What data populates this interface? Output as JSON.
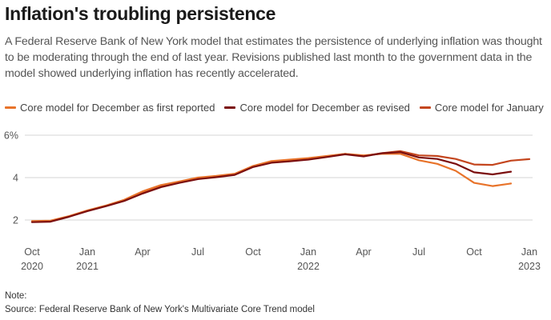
{
  "title": "Inflation's troubling persistence",
  "subtitle": "A Federal Reserve Bank of New York model that estimates the persistence of underlying inflation was thought to be moderating through the end of last year. Revisions published last month to the government data in the model showed underlying inflation has recently accelerated.",
  "footer": {
    "note": "Note:",
    "source": "Source: Federal Reserve Bank of New York's Multivariate Core Trend model"
  },
  "chart_data": {
    "type": "line",
    "title": "Inflation's troubling persistence",
    "xlabel": "",
    "ylabel": "",
    "ylim": [
      1.5,
      6
    ],
    "y_ticks": [
      {
        "value": 6,
        "label": "6%"
      },
      {
        "value": 4,
        "label": "4"
      },
      {
        "value": 2,
        "label": "2"
      }
    ],
    "x_ticks": [
      {
        "index": 0,
        "line1": "Oct",
        "line2": "2020"
      },
      {
        "index": 3,
        "line1": "Jan",
        "line2": "2021"
      },
      {
        "index": 6,
        "line1": "Apr",
        "line2": ""
      },
      {
        "index": 9,
        "line1": "Jul",
        "line2": ""
      },
      {
        "index": 12,
        "line1": "Oct",
        "line2": ""
      },
      {
        "index": 15,
        "line1": "Jan",
        "line2": "2022"
      },
      {
        "index": 18,
        "line1": "Apr",
        "line2": ""
      },
      {
        "index": 21,
        "line1": "Jul",
        "line2": ""
      },
      {
        "index": 24,
        "line1": "Oct",
        "line2": ""
      },
      {
        "index": 27,
        "line1": "Jan",
        "line2": "2023"
      }
    ],
    "x": [
      "2020-10",
      "2020-11",
      "2020-12",
      "2021-01",
      "2021-02",
      "2021-03",
      "2021-04",
      "2021-05",
      "2021-06",
      "2021-07",
      "2021-08",
      "2021-09",
      "2021-10",
      "2021-11",
      "2021-12",
      "2022-01",
      "2022-02",
      "2022-03",
      "2022-04",
      "2022-05",
      "2022-06",
      "2022-07",
      "2022-08",
      "2022-09",
      "2022-10",
      "2022-11",
      "2022-12",
      "2023-01"
    ],
    "grid": true,
    "legend_position": "top-left",
    "series": [
      {
        "name": "Core model for December as first reported",
        "color": "#e8732a",
        "values": [
          1.95,
          1.97,
          2.18,
          2.45,
          2.68,
          2.95,
          3.35,
          3.65,
          3.82,
          4.0,
          4.08,
          4.18,
          4.55,
          4.78,
          4.85,
          4.92,
          5.02,
          5.12,
          5.05,
          5.12,
          5.12,
          4.82,
          4.65,
          4.32,
          3.75,
          3.6,
          3.72,
          null
        ]
      },
      {
        "name": "Core model for December as revised",
        "color": "#7b0e0e",
        "values": [
          1.9,
          1.92,
          2.15,
          2.42,
          2.65,
          2.9,
          3.25,
          3.55,
          3.75,
          3.93,
          4.02,
          4.13,
          4.5,
          4.7,
          4.77,
          4.85,
          4.97,
          5.1,
          5.0,
          5.15,
          5.2,
          4.95,
          4.88,
          4.65,
          4.25,
          4.15,
          4.28,
          null
        ]
      },
      {
        "name": "Core model for January",
        "color": "#c4461e",
        "values": [
          1.92,
          1.94,
          2.16,
          2.44,
          2.66,
          2.92,
          3.3,
          3.6,
          3.78,
          3.97,
          4.05,
          4.15,
          4.52,
          4.75,
          4.82,
          4.9,
          5.0,
          5.12,
          5.02,
          5.15,
          5.25,
          5.05,
          5.02,
          4.88,
          4.62,
          4.6,
          4.8,
          4.87
        ]
      }
    ]
  }
}
